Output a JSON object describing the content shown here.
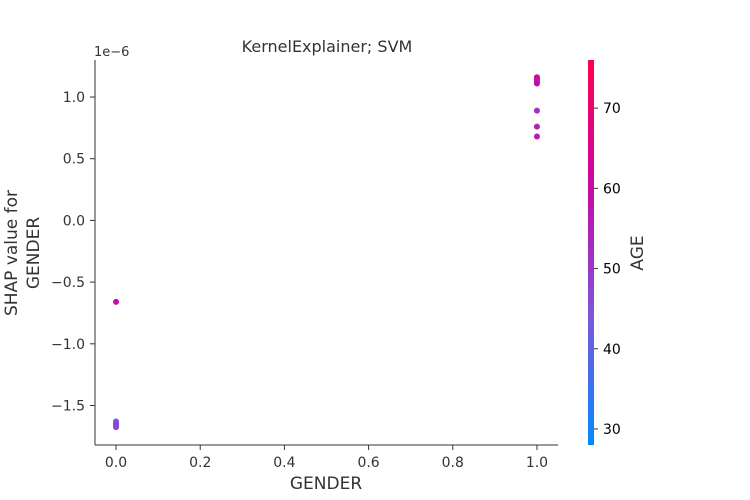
{
  "chart_data": {
    "type": "scatter",
    "title": "KernelExplainer; SVM",
    "xlabel": "GENDER",
    "ylabel_lines": [
      "SHAP value for",
      "GENDER"
    ],
    "y_offset_label": "1e−6",
    "xlim": [
      -0.05,
      1.05
    ],
    "ylim": [
      -1.82,
      1.3
    ],
    "xticks": [
      0.0,
      0.2,
      0.4,
      0.6,
      0.8,
      1.0
    ],
    "xtick_labels": [
      "0.0",
      "0.2",
      "0.4",
      "0.6",
      "0.8",
      "1.0"
    ],
    "yticks": [
      -1.5,
      -1.0,
      -0.5,
      0.0,
      0.5,
      1.0
    ],
    "ytick_labels": [
      "−1.5",
      "−1.0",
      "−0.5",
      "0.0",
      "0.5",
      "1.0"
    ],
    "colorbar": {
      "label": "AGE",
      "range": [
        28,
        76
      ],
      "ticks": [
        30,
        40,
        50,
        60,
        70
      ],
      "tick_labels": [
        "30",
        "40",
        "50",
        "60",
        "70"
      ],
      "colors": [
        "#008afb",
        "#7d57db",
        "#c40aa8",
        "#ff0052"
      ]
    },
    "points": [
      {
        "x": 1.0,
        "y": 1.16,
        "age": 62
      },
      {
        "x": 1.0,
        "y": 1.15,
        "age": 68
      },
      {
        "x": 1.0,
        "y": 1.14,
        "age": 58
      },
      {
        "x": 1.0,
        "y": 1.13,
        "age": 63
      },
      {
        "x": 1.0,
        "y": 1.12,
        "age": 55
      },
      {
        "x": 1.0,
        "y": 1.11,
        "age": 60
      },
      {
        "x": 1.0,
        "y": 0.89,
        "age": 52
      },
      {
        "x": 1.0,
        "y": 0.76,
        "age": 55
      },
      {
        "x": 1.0,
        "y": 0.68,
        "age": 57
      },
      {
        "x": 0.0,
        "y": -0.66,
        "age": 60
      },
      {
        "x": 0.0,
        "y": -1.63,
        "age": 45
      },
      {
        "x": 0.0,
        "y": -1.645,
        "age": 42
      },
      {
        "x": 0.0,
        "y": -1.66,
        "age": 50
      },
      {
        "x": 0.0,
        "y": -1.675,
        "age": 47
      }
    ]
  }
}
